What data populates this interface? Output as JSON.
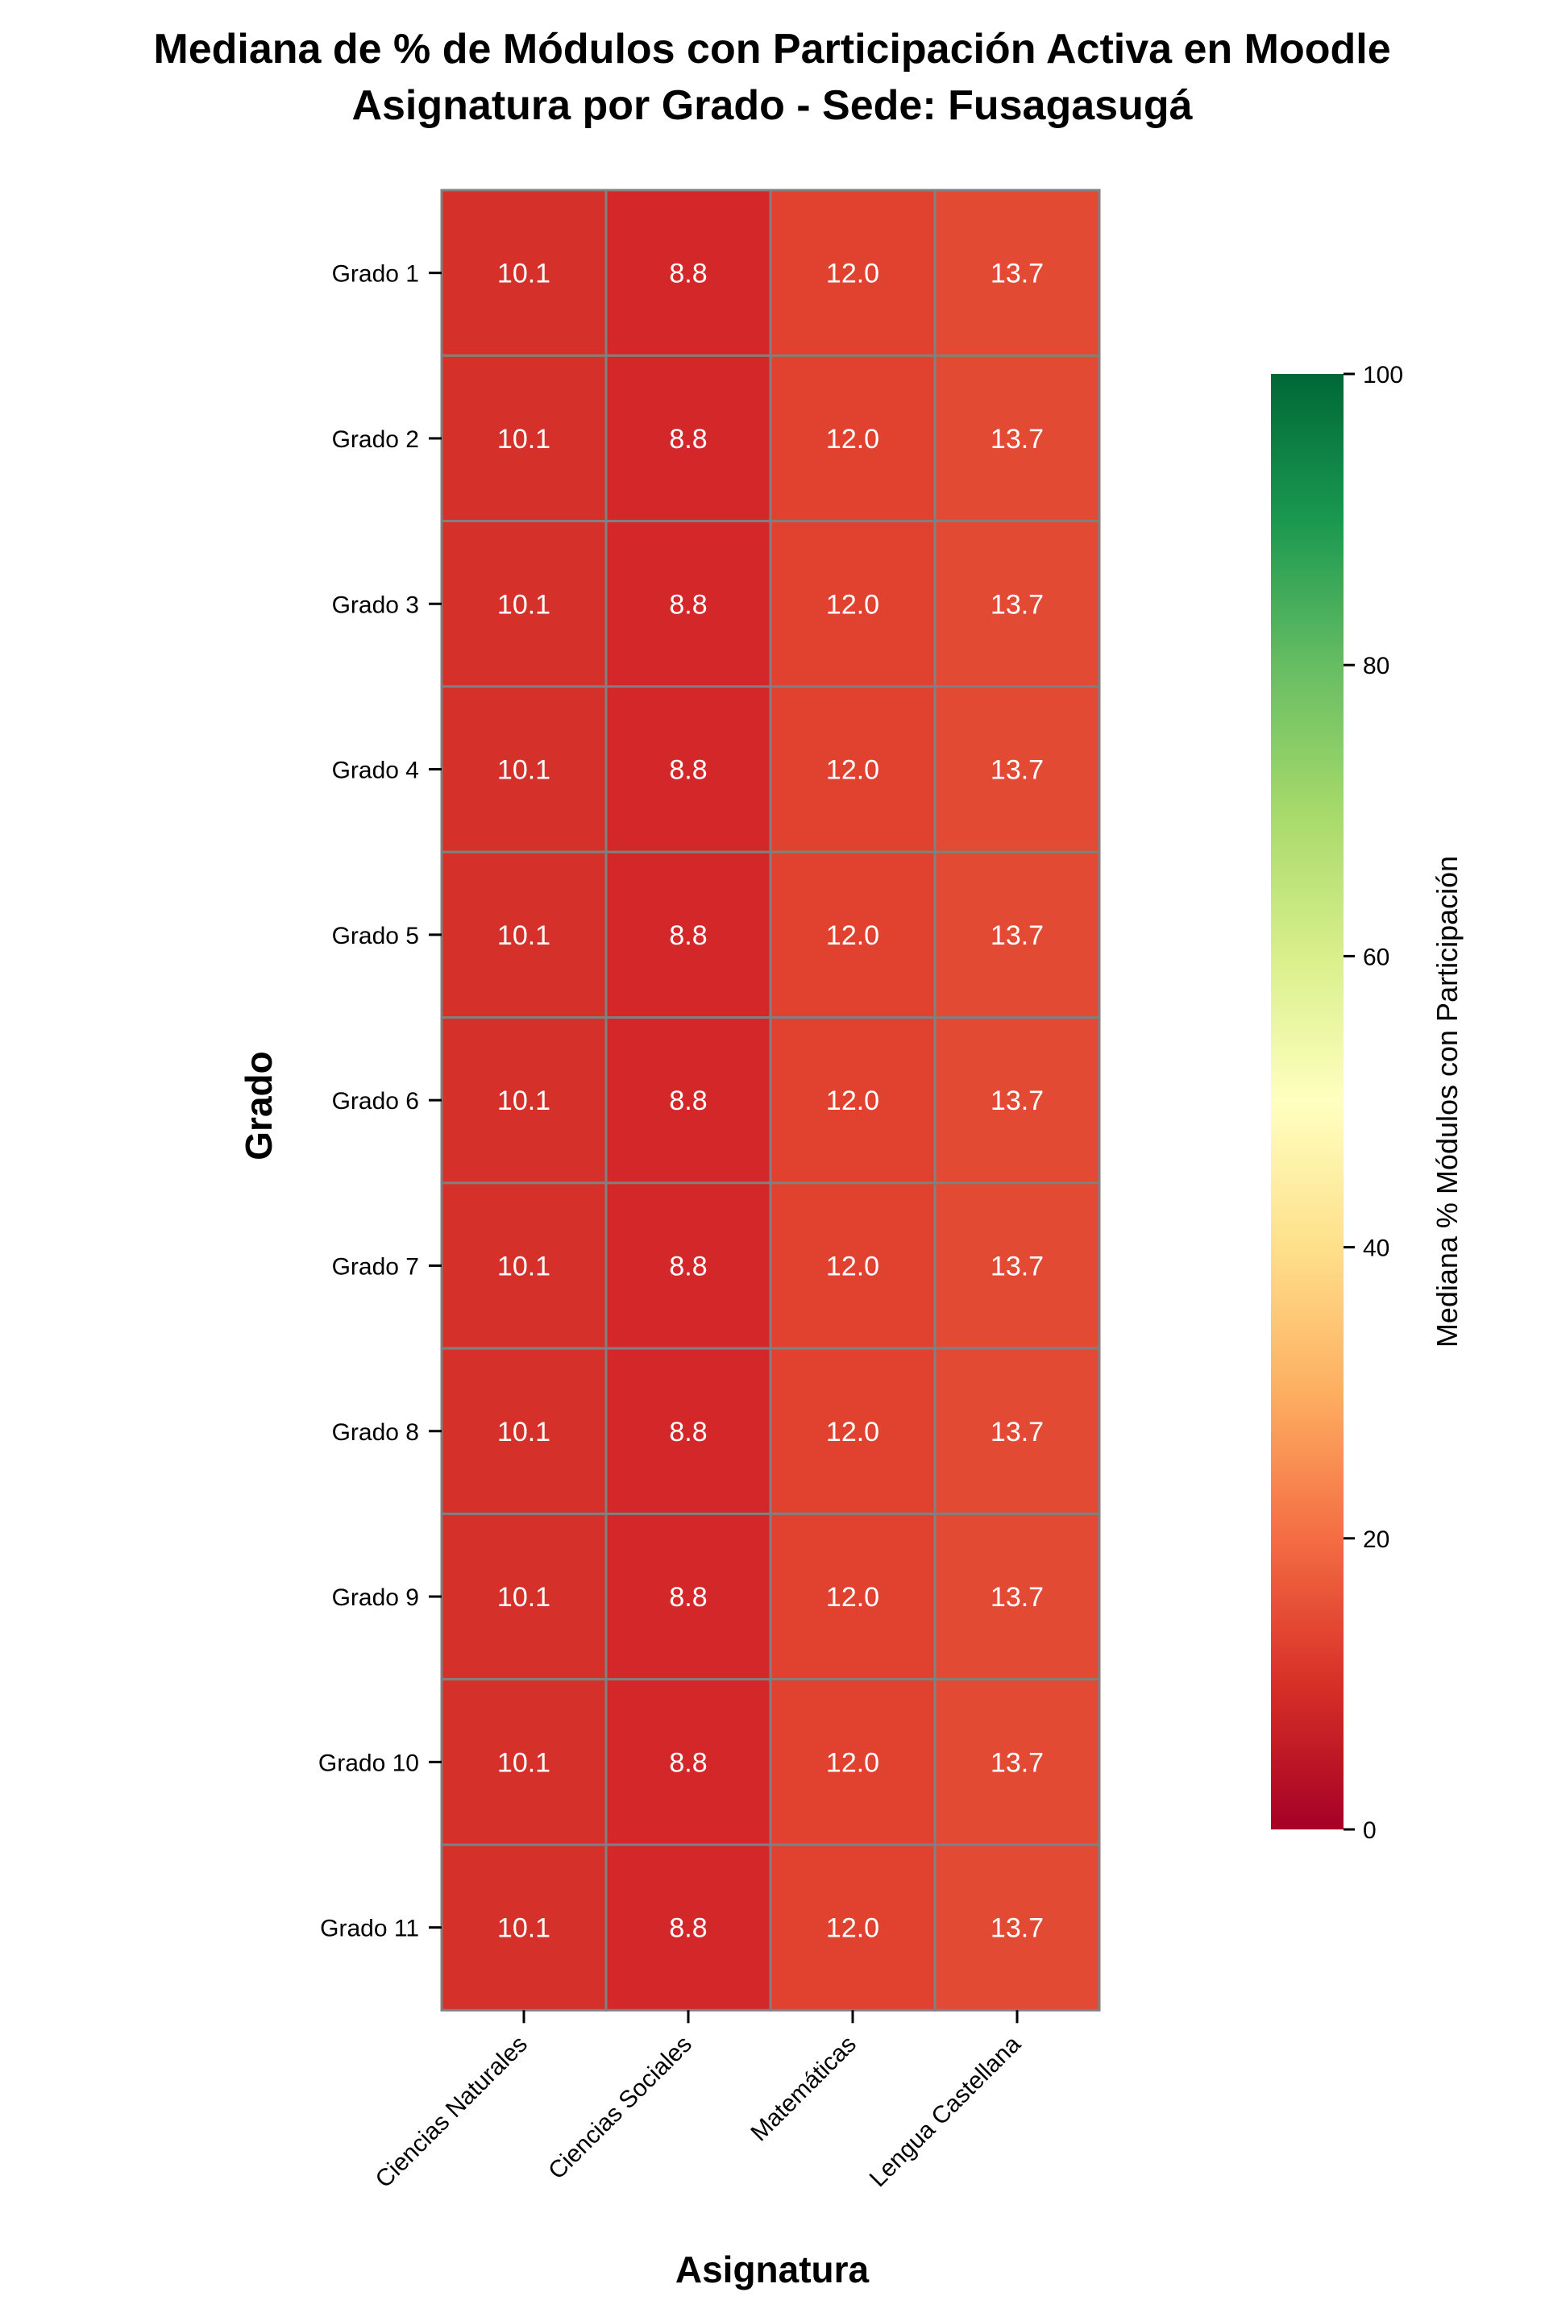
{
  "chart_data": {
    "type": "heatmap",
    "title_line1": "Mediana de % de Módulos con Participación Activa en Moodle",
    "title_line2": "Asignatura por Grado - Sede: Fusagasugá",
    "xlabel": "Asignatura",
    "ylabel": "Grado",
    "colorbar_label": "Mediana % Módulos con Participación",
    "colorbar_range": [
      0,
      100
    ],
    "colorbar_ticks": [
      0,
      20,
      40,
      60,
      80,
      100
    ],
    "colormap": "RdYlGn",
    "x_categories": [
      "Ciencias Naturales",
      "Ciencias Sociales",
      "Matemáticas",
      "Lengua Castellana"
    ],
    "y_categories": [
      "Grado 1",
      "Grado 2",
      "Grado 3",
      "Grado 4",
      "Grado 5",
      "Grado 6",
      "Grado 7",
      "Grado 8",
      "Grado 9",
      "Grado 10",
      "Grado 11"
    ],
    "values": [
      [
        10.1,
        8.8,
        12.0,
        13.7
      ],
      [
        10.1,
        8.8,
        12.0,
        13.7
      ],
      [
        10.1,
        8.8,
        12.0,
        13.7
      ],
      [
        10.1,
        8.8,
        12.0,
        13.7
      ],
      [
        10.1,
        8.8,
        12.0,
        13.7
      ],
      [
        10.1,
        8.8,
        12.0,
        13.7
      ],
      [
        10.1,
        8.8,
        12.0,
        13.7
      ],
      [
        10.1,
        8.8,
        12.0,
        13.7
      ],
      [
        10.1,
        8.8,
        12.0,
        13.7
      ],
      [
        10.1,
        8.8,
        12.0,
        13.7
      ],
      [
        10.1,
        8.8,
        12.0,
        13.7
      ]
    ],
    "cell_labels": [
      [
        "10.1",
        "8.8",
        "12.0",
        "13.7"
      ],
      [
        "10.1",
        "8.8",
        "12.0",
        "13.7"
      ],
      [
        "10.1",
        "8.8",
        "12.0",
        "13.7"
      ],
      [
        "10.1",
        "8.8",
        "12.0",
        "13.7"
      ],
      [
        "10.1",
        "8.8",
        "12.0",
        "13.7"
      ],
      [
        "10.1",
        "8.8",
        "12.0",
        "13.7"
      ],
      [
        "10.1",
        "8.8",
        "12.0",
        "13.7"
      ],
      [
        "10.1",
        "8.8",
        "12.0",
        "13.7"
      ],
      [
        "10.1",
        "8.8",
        "12.0",
        "13.7"
      ],
      [
        "10.1",
        "8.8",
        "12.0",
        "13.7"
      ],
      [
        "10.1",
        "8.8",
        "12.0",
        "13.7"
      ]
    ],
    "cell_colors": [
      "#d6302a",
      "#d42729",
      "#e0422f",
      "#e34a33"
    ],
    "cell_border_color": "#808080",
    "colorbar_gradient": [
      "#a50026",
      "#d73027",
      "#f46d43",
      "#fdae61",
      "#fee08b",
      "#ffffbf",
      "#d9ef8b",
      "#a6d96a",
      "#66bd63",
      "#1a9850",
      "#006837"
    ]
  }
}
